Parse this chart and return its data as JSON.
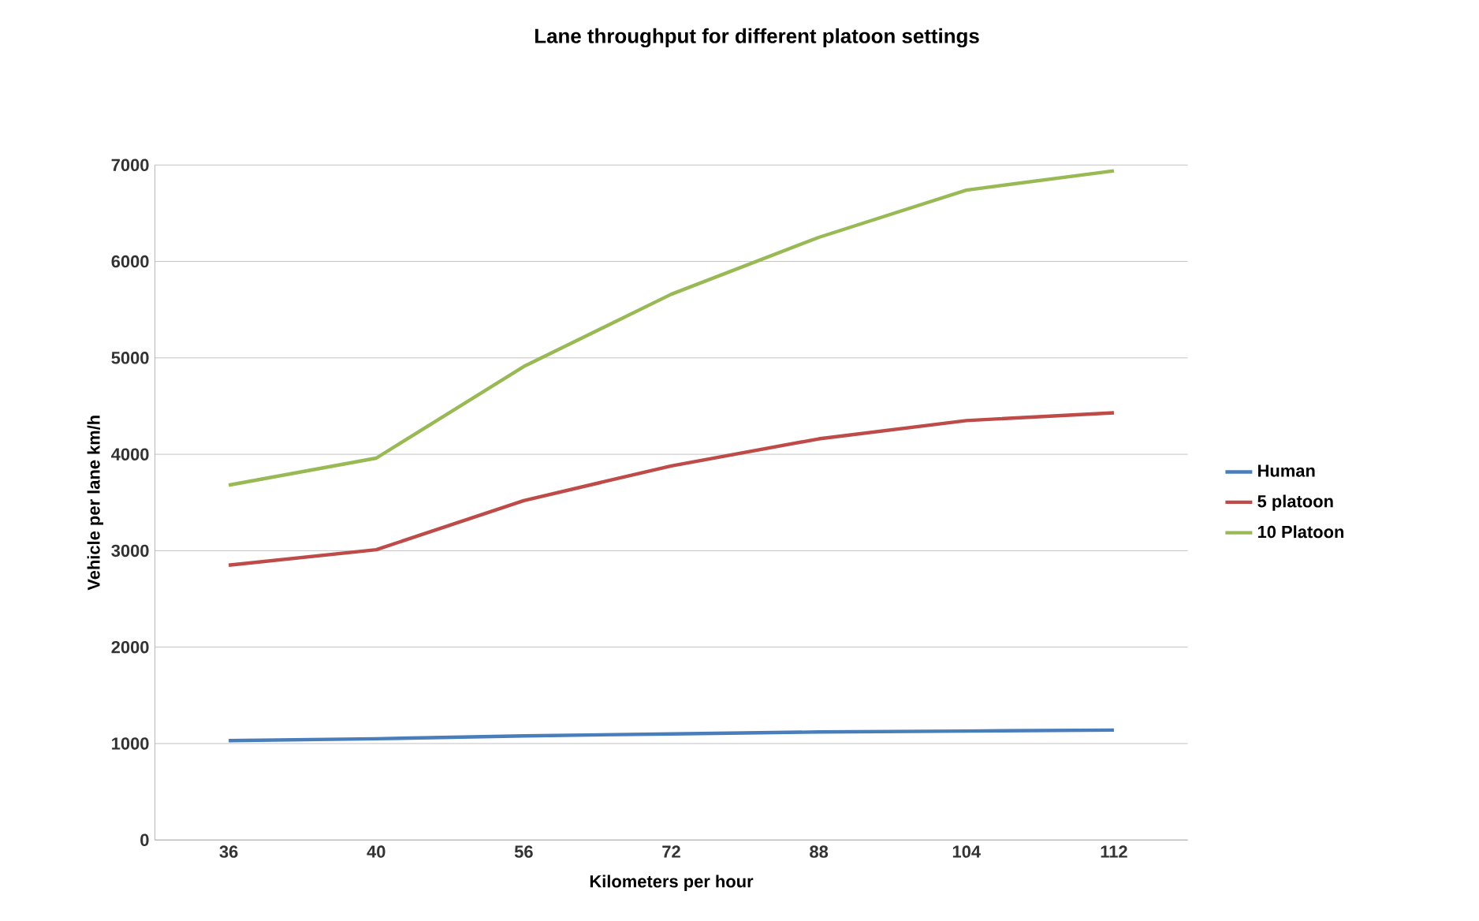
{
  "chart_data": {
    "type": "line",
    "title": "Lane throughput for different platoon settings",
    "xlabel": "Kilometers per hour",
    "ylabel": "Vehicle per lane km/h",
    "categories": [
      "36",
      "40",
      "56",
      "72",
      "88",
      "104",
      "112"
    ],
    "series": [
      {
        "name": "Human",
        "color": "#4a7ebb",
        "values": [
          1030,
          1050,
          1080,
          1100,
          1120,
          1130,
          1140
        ]
      },
      {
        "name": "5 platoon",
        "color": "#be4b48",
        "values": [
          2850,
          3010,
          3520,
          3880,
          4160,
          4350,
          4430
        ]
      },
      {
        "name": "10 Platoon",
        "color": "#98b954",
        "values": [
          3680,
          3960,
          4910,
          5660,
          6250,
          6740,
          6940
        ]
      }
    ],
    "ylim": [
      0,
      7000
    ],
    "yticks": [
      0,
      1000,
      2000,
      3000,
      4000,
      5000,
      6000,
      7000
    ],
    "grid": "y",
    "legend": "right",
    "marker": "none",
    "line_style": "solid"
  }
}
